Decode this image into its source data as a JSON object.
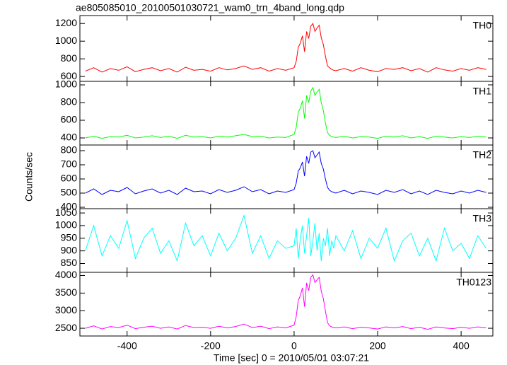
{
  "chart_data": [
    {
      "type": "line",
      "title": "ae805085010_20100501030721_wam0_trn_4band_long.qdp",
      "x": [
        -500,
        -480,
        -460,
        -440,
        -420,
        -400,
        -380,
        -360,
        -340,
        -320,
        -300,
        -280,
        -260,
        -240,
        -220,
        -200,
        -180,
        -160,
        -140,
        -120,
        -100,
        -80,
        -60,
        -40,
        -20,
        0,
        5,
        10,
        15,
        20,
        25,
        30,
        35,
        40,
        45,
        50,
        55,
        60,
        65,
        70,
        75,
        80,
        85,
        90,
        95,
        100,
        120,
        140,
        160,
        180,
        200,
        220,
        240,
        260,
        280,
        300,
        320,
        340,
        360,
        380,
        400,
        420,
        440,
        460
      ],
      "series": [
        {
          "name": "TH0",
          "color": "#ff0000",
          "values": [
            660,
            700,
            650,
            690,
            670,
            710,
            655,
            680,
            700,
            665,
            690,
            650,
            705,
            670,
            680,
            660,
            700,
            675,
            690,
            720,
            680,
            700,
            660,
            690,
            670,
            700,
            770,
            930,
            980,
            1060,
            880,
            1110,
            1030,
            1170,
            1200,
            1110,
            1150,
            1180,
            1040,
            960,
            830,
            720,
            700,
            680,
            670,
            665,
            690,
            660,
            700,
            670,
            655,
            690,
            680,
            700,
            665,
            690,
            650,
            700,
            675,
            660,
            690,
            670,
            700,
            680
          ]
        }
      ],
      "xlim": [
        -513,
        476
      ],
      "ylim": [
        545,
        1290
      ],
      "yticks": [
        600,
        800,
        1000,
        1200
      ]
    },
    {
      "type": "line",
      "x": [
        -500,
        -480,
        -460,
        -440,
        -420,
        -400,
        -380,
        -360,
        -340,
        -320,
        -300,
        -280,
        -260,
        -240,
        -220,
        -200,
        -180,
        -160,
        -140,
        -120,
        -100,
        -80,
        -60,
        -40,
        -20,
        0,
        5,
        10,
        15,
        20,
        25,
        30,
        35,
        40,
        45,
        50,
        55,
        60,
        65,
        70,
        75,
        80,
        85,
        90,
        95,
        100,
        120,
        140,
        160,
        180,
        200,
        220,
        240,
        260,
        280,
        300,
        320,
        340,
        360,
        380,
        400,
        420,
        440,
        460
      ],
      "series": [
        {
          "name": "TH1",
          "color": "#00ff00",
          "values": [
            400,
            420,
            395,
            415,
            410,
            430,
            400,
            410,
            425,
            405,
            420,
            395,
            430,
            410,
            415,
            400,
            420,
            410,
            425,
            440,
            415,
            420,
            400,
            410,
            405,
            440,
            520,
            690,
            740,
            820,
            620,
            880,
            800,
            930,
            970,
            880,
            920,
            950,
            800,
            710,
            570,
            460,
            430,
            415,
            410,
            405,
            420,
            400,
            415,
            410,
            395,
            420,
            410,
            425,
            400,
            415,
            395,
            420,
            410,
            400,
            415,
            405,
            420,
            410
          ]
        }
      ],
      "xlim": [
        -513,
        476
      ],
      "ylim": [
        320,
        1040
      ],
      "yticks": [
        400,
        600,
        800,
        1000
      ]
    },
    {
      "type": "line",
      "ylabel": "Counts/sec",
      "x": [
        -500,
        -480,
        -460,
        -440,
        -420,
        -400,
        -380,
        -360,
        -340,
        -320,
        -300,
        -280,
        -260,
        -240,
        -220,
        -200,
        -180,
        -160,
        -140,
        -120,
        -100,
        -80,
        -60,
        -40,
        -20,
        0,
        5,
        10,
        15,
        20,
        25,
        30,
        35,
        40,
        45,
        50,
        55,
        60,
        65,
        70,
        75,
        80,
        85,
        90,
        95,
        100,
        120,
        140,
        160,
        180,
        200,
        220,
        240,
        260,
        280,
        300,
        320,
        340,
        360,
        380,
        400,
        420,
        440,
        460
      ],
      "series": [
        {
          "name": "TH2",
          "color": "#0000ff",
          "values": [
            500,
            530,
            490,
            520,
            510,
            540,
            495,
            515,
            530,
            500,
            520,
            490,
            535,
            510,
            515,
            495,
            525,
            505,
            520,
            545,
            510,
            525,
            495,
            515,
            505,
            525,
            570,
            655,
            680,
            720,
            620,
            760,
            710,
            790,
            800,
            750,
            770,
            790,
            710,
            670,
            600,
            540,
            520,
            510,
            505,
            500,
            520,
            495,
            515,
            505,
            490,
            520,
            505,
            525,
            495,
            515,
            490,
            520,
            505,
            495,
            515,
            500,
            520,
            505
          ]
        }
      ],
      "xlim": [
        -513,
        476
      ],
      "ylim": [
        390,
        840
      ],
      "yticks": [
        400,
        500,
        600,
        700,
        800
      ]
    },
    {
      "type": "line",
      "x": [
        -500,
        -480,
        -460,
        -440,
        -420,
        -400,
        -380,
        -360,
        -340,
        -320,
        -300,
        -280,
        -260,
        -240,
        -220,
        -200,
        -180,
        -160,
        -140,
        -120,
        -100,
        -80,
        -60,
        -40,
        -20,
        0,
        5,
        10,
        15,
        20,
        25,
        30,
        35,
        40,
        45,
        50,
        55,
        60,
        65,
        70,
        75,
        80,
        85,
        90,
        95,
        100,
        120,
        140,
        160,
        180,
        200,
        220,
        240,
        260,
        280,
        300,
        320,
        340,
        360,
        380,
        400,
        420,
        440,
        460
      ],
      "series": [
        {
          "name": "TH3",
          "color": "#00ffff",
          "values": [
            900,
            1000,
            880,
            960,
            910,
            1020,
            870,
            950,
            990,
            890,
            940,
            860,
            1010,
            920,
            960,
            880,
            970,
            900,
            950,
            1040,
            890,
            960,
            870,
            940,
            910,
            920,
            990,
            870,
            950,
            1000,
            890,
            960,
            1030,
            880,
            940,
            1010,
            900,
            970,
            860,
            950,
            920,
            990,
            880,
            940,
            910,
            960,
            900,
            980,
            870,
            950,
            910,
            990,
            860,
            940,
            970,
            880,
            950,
            860,
            990,
            900,
            930,
            870,
            960,
            910
          ]
        }
      ],
      "xlim": [
        -513,
        476
      ],
      "ylim": [
        815,
        1067
      ],
      "yticks": [
        850,
        900,
        950,
        1000,
        1050
      ]
    },
    {
      "type": "line",
      "xlabel": "Time [sec] 0 = 2010/05/01 03:07:21",
      "x": [
        -500,
        -480,
        -460,
        -440,
        -420,
        -400,
        -380,
        -360,
        -340,
        -320,
        -300,
        -280,
        -260,
        -240,
        -220,
        -200,
        -180,
        -160,
        -140,
        -120,
        -100,
        -80,
        -60,
        -40,
        -20,
        0,
        5,
        10,
        15,
        20,
        25,
        30,
        35,
        40,
        45,
        50,
        55,
        60,
        65,
        70,
        75,
        80,
        85,
        90,
        95,
        100,
        120,
        140,
        160,
        180,
        200,
        220,
        240,
        260,
        280,
        300,
        320,
        340,
        360,
        380,
        400,
        420,
        440,
        460
      ],
      "series": [
        {
          "name": "TH0123",
          "color": "#ff00ff",
          "values": [
            2500,
            2570,
            2480,
            2550,
            2520,
            2590,
            2490,
            2530,
            2560,
            2500,
            2540,
            2480,
            2580,
            2520,
            2530,
            2500,
            2560,
            2510,
            2550,
            2620,
            2520,
            2560,
            2490,
            2540,
            2510,
            2590,
            2830,
            3290,
            3430,
            3650,
            3110,
            3790,
            3570,
            3950,
            4020,
            3800,
            3880,
            3950,
            3560,
            3340,
            2990,
            2660,
            2570,
            2540,
            2520,
            2510,
            2540,
            2490,
            2530,
            2510,
            2480,
            2540,
            2510,
            2550,
            2490,
            2530,
            2470,
            2540,
            2510,
            2490,
            2530,
            2500,
            2540,
            2510
          ]
        }
      ],
      "xlim": [
        -513,
        476
      ],
      "ylim": [
        2280,
        4090
      ],
      "yticks": [
        2500,
        3000,
        3500,
        4000
      ],
      "xticks": [
        -400,
        -200,
        0,
        200,
        400
      ]
    }
  ]
}
